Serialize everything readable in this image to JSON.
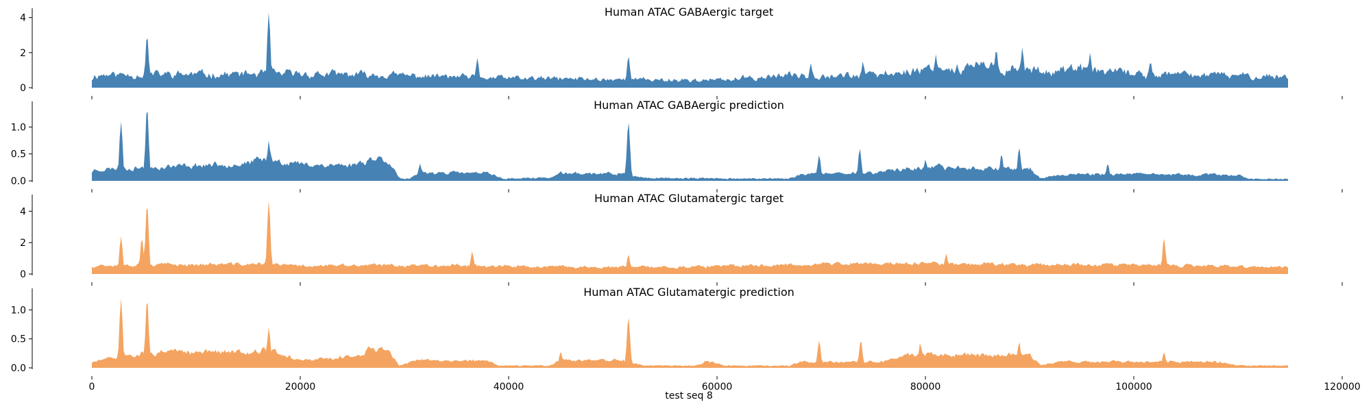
{
  "figure": {
    "xlabel": "test seq 8",
    "x_tick_labels": [
      "0",
      "20000",
      "40000",
      "60000",
      "80000",
      "100000",
      "120000"
    ]
  },
  "chart_data": [
    {
      "type": "area",
      "title": "Human ATAC GABAergic target",
      "color": "#4682b4",
      "xlim": [
        0,
        120000
      ],
      "ylim": [
        0,
        4.3
      ],
      "y_ticks": [
        0,
        2,
        4
      ],
      "y_tick_labels": [
        "0",
        "2",
        "4"
      ],
      "x_extent": [
        0,
        114800
      ],
      "baseline": 0.3,
      "noise": 0.55,
      "seed": 11,
      "envelope": [
        [
          0,
          0.7
        ],
        [
          20000,
          0.75
        ],
        [
          30000,
          0.65
        ],
        [
          40000,
          0.5
        ],
        [
          48000,
          0.45
        ],
        [
          60000,
          0.38
        ],
        [
          68000,
          0.7
        ],
        [
          75000,
          0.65
        ],
        [
          80000,
          1.05
        ],
        [
          86000,
          1.15
        ],
        [
          90000,
          0.95
        ],
        [
          95000,
          1.0
        ],
        [
          100000,
          0.75
        ],
        [
          114800,
          0.6
        ]
      ],
      "peaks": [
        [
          5300,
          3.0
        ],
        [
          16980,
          4.3
        ],
        [
          37000,
          1.7
        ],
        [
          51500,
          1.8
        ],
        [
          69000,
          1.4
        ],
        [
          74000,
          1.5
        ],
        [
          81000,
          1.9
        ],
        [
          86800,
          2.2
        ],
        [
          89300,
          2.3
        ],
        [
          95800,
          2.0
        ],
        [
          101600,
          1.5
        ]
      ]
    },
    {
      "type": "area",
      "title": "Human ATAC GABAergic prediction",
      "color": "#4682b4",
      "xlim": [
        0,
        120000
      ],
      "ylim": [
        0,
        1.4
      ],
      "y_ticks": [
        0,
        0.5,
        1.0
      ],
      "y_tick_labels": [
        "0.0",
        "0.5",
        "1.0"
      ],
      "x_extent": [
        0,
        114800
      ],
      "baseline": 0.07,
      "noise": 0.35,
      "seed": 23,
      "envelope": [
        [
          0,
          0.2
        ],
        [
          15000,
          0.32
        ],
        [
          17000,
          0.4
        ],
        [
          20000,
          0.3
        ],
        [
          25000,
          0.28
        ],
        [
          27000,
          0.42
        ],
        [
          28500,
          0.38
        ],
        [
          29500,
          0.04
        ],
        [
          30500,
          0.02
        ],
        [
          31500,
          0.15
        ],
        [
          38000,
          0.13
        ],
        [
          39500,
          0.03
        ],
        [
          44000,
          0.05
        ],
        [
          45000,
          0.13
        ],
        [
          51000,
          0.12
        ],
        [
          53000,
          0.04
        ],
        [
          67000,
          0.03
        ],
        [
          68000,
          0.12
        ],
        [
          75000,
          0.14
        ],
        [
          77000,
          0.2
        ],
        [
          81000,
          0.24
        ],
        [
          90000,
          0.22
        ],
        [
          91000,
          0.04
        ],
        [
          94000,
          0.12
        ],
        [
          110000,
          0.1
        ],
        [
          111000,
          0.03
        ],
        [
          114800,
          0.02
        ]
      ],
      "peaks": [
        [
          2800,
          1.1
        ],
        [
          5300,
          1.38
        ],
        [
          16980,
          0.75
        ],
        [
          31500,
          0.32
        ],
        [
          51500,
          1.1
        ],
        [
          69800,
          0.48
        ],
        [
          73700,
          0.6
        ],
        [
          80000,
          0.4
        ],
        [
          87300,
          0.5
        ],
        [
          89000,
          0.62
        ],
        [
          97500,
          0.32
        ]
      ]
    },
    {
      "type": "area",
      "title": "Human ATAC Glutamatergic target",
      "color": "#f4a460",
      "xlim": [
        0,
        120000
      ],
      "ylim": [
        0,
        4.8
      ],
      "y_ticks": [
        0,
        2,
        4
      ],
      "y_tick_labels": [
        "0",
        "2",
        "4"
      ],
      "x_extent": [
        0,
        114800
      ],
      "baseline": 0.2,
      "noise": 0.35,
      "seed": 37,
      "envelope": [
        [
          0,
          0.55
        ],
        [
          16000,
          0.6
        ],
        [
          20000,
          0.5
        ],
        [
          35000,
          0.55
        ],
        [
          40000,
          0.45
        ],
        [
          50000,
          0.4
        ],
        [
          60000,
          0.45
        ],
        [
          68000,
          0.6
        ],
        [
          80000,
          0.65
        ],
        [
          90000,
          0.6
        ],
        [
          100000,
          0.55
        ],
        [
          114800,
          0.4
        ]
      ],
      "peaks": [
        [
          2800,
          2.4
        ],
        [
          4800,
          2.3
        ],
        [
          5300,
          4.5
        ],
        [
          16980,
          4.7
        ],
        [
          36500,
          1.45
        ],
        [
          51500,
          1.25
        ],
        [
          82000,
          1.3
        ],
        [
          102900,
          2.3
        ]
      ]
    },
    {
      "type": "area",
      "title": "Human ATAC Glutamatergic prediction",
      "color": "#f4a460",
      "xlim": [
        0,
        120000
      ],
      "ylim": [
        0,
        1.3
      ],
      "y_ticks": [
        0,
        0.5,
        1.0
      ],
      "y_tick_labels": [
        "0.0",
        "0.5",
        "1.0"
      ],
      "x_extent": [
        0,
        114800
      ],
      "baseline": 0.05,
      "noise": 0.35,
      "seed": 51,
      "envelope": [
        [
          0,
          0.1
        ],
        [
          5000,
          0.25
        ],
        [
          15000,
          0.28
        ],
        [
          17000,
          0.3
        ],
        [
          20000,
          0.12
        ],
        [
          25000,
          0.18
        ],
        [
          27000,
          0.35
        ],
        [
          28500,
          0.3
        ],
        [
          29500,
          0.03
        ],
        [
          31000,
          0.12
        ],
        [
          38000,
          0.12
        ],
        [
          39000,
          0.03
        ],
        [
          44000,
          0.03
        ],
        [
          45000,
          0.12
        ],
        [
          51000,
          0.12
        ],
        [
          53000,
          0.03
        ],
        [
          58000,
          0.03
        ],
        [
          59000,
          0.12
        ],
        [
          61000,
          0.03
        ],
        [
          67000,
          0.03
        ],
        [
          68000,
          0.1
        ],
        [
          76000,
          0.1
        ],
        [
          78000,
          0.22
        ],
        [
          90000,
          0.22
        ],
        [
          91000,
          0.04
        ],
        [
          93000,
          0.1
        ],
        [
          108000,
          0.1
        ],
        [
          110000,
          0.03
        ],
        [
          114800,
          0.03
        ]
      ],
      "peaks": [
        [
          2800,
          1.2
        ],
        [
          5300,
          1.2
        ],
        [
          16980,
          0.7
        ],
        [
          45000,
          0.28
        ],
        [
          51500,
          0.88
        ],
        [
          69800,
          0.47
        ],
        [
          73800,
          0.48
        ],
        [
          79500,
          0.43
        ],
        [
          89000,
          0.45
        ],
        [
          102900,
          0.27
        ]
      ]
    }
  ]
}
